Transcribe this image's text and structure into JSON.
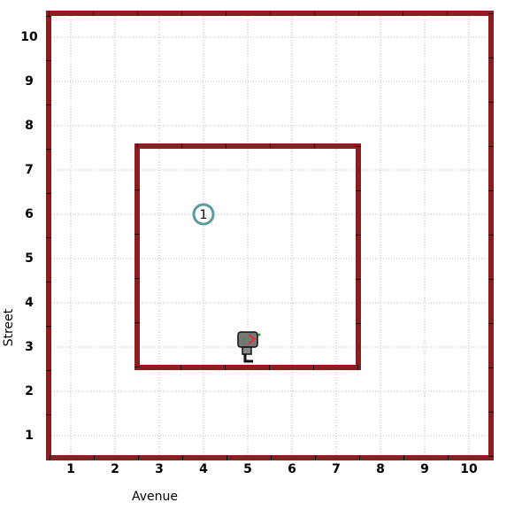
{
  "world": {
    "x_label": "Avenue",
    "y_label": "Street",
    "avenues": [
      1,
      2,
      3,
      4,
      5,
      6,
      7,
      8,
      9,
      10
    ],
    "streets": [
      1,
      2,
      3,
      4,
      5,
      6,
      7,
      8,
      9,
      10
    ],
    "objects": [
      {
        "avenue": 4,
        "street": 6,
        "count": "1"
      }
    ],
    "robot": {
      "avenue": 5,
      "street": 3
    }
  }
}
